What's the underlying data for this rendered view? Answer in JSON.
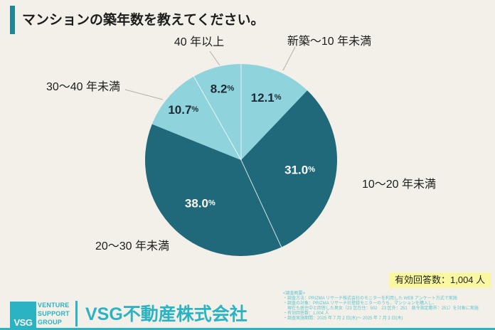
{
  "header": {
    "title": "マンションの築年数を教えてください。"
  },
  "chart_data": {
    "type": "pie",
    "title": "マンションの築年数を教えてください。",
    "unit": "%",
    "start_angle": "12-oclock",
    "direction": "clockwise",
    "legend_position": "labels-around-pie",
    "slices": [
      {
        "label": "新築～10 年未満",
        "value": 12.1,
        "display": "12.1",
        "color": "#8fd3dd",
        "text_color": "#1c2b36"
      },
      {
        "label": "10～20 年未満",
        "value": 31.0,
        "display": "31.0",
        "color": "#20697a",
        "text_color": "#ffffff"
      },
      {
        "label": "20～30 年未満",
        "value": 38.0,
        "display": "38.0",
        "color": "#20697a",
        "text_color": "#ffffff"
      },
      {
        "label": "30～40 年未満",
        "value": 10.7,
        "display": "10.7",
        "color": "#8fd3dd",
        "text_color": "#1c2b36"
      },
      {
        "label": "40 年以上",
        "value": 8.2,
        "display": "8.2",
        "color": "#8fd3dd",
        "text_color": "#1c2b36"
      }
    ]
  },
  "annotation": {
    "valid_responses": "有効回答数：1,004 人"
  },
  "survey_notes": {
    "heading": "<調査概要>",
    "lines": [
      "・調査方法：PRIZMA リサーチ株式会社のモニターを利用した WEB アンケート方式で実施",
      "・調査の対象：PRIZMA リサーチ社登録モニターのうち、マンションを購入し、",
      "　現在も居住中と回答した男女（23 区在住：502　23 区外：251　政令指定都市：251）を対象に実施",
      "・有効回答数：1,004 人",
      "・調査実施期間：2025 年 7 月 2 日(水)～ 2025 年 7 月 3 日(木)"
    ]
  },
  "footer": {
    "logo_acronym": "VSG",
    "logo_words": [
      "VENTURE",
      "SUPPORT",
      "GROUP"
    ],
    "company_name": "VSG不動産株式会社"
  },
  "colors": {
    "background": "#f2f0e9",
    "accent_teal": "#1f8795",
    "brand_teal": "#2bb3c3",
    "pie_light": "#8fd3dd",
    "pie_dark": "#20697a",
    "highlight_yellow": "#f9f7a1",
    "notes_teal": "#5fc3ce",
    "leader_line": "#b3b0a9"
  }
}
